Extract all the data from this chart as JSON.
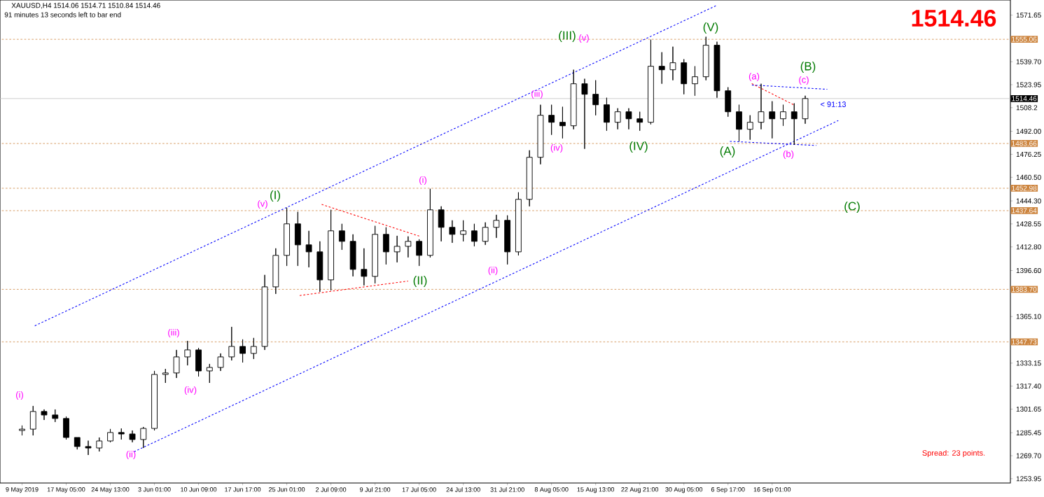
{
  "chart_data": {
    "type": "candlestick",
    "title": "XAUUSD,H4  1514.06 1514.71 1510.84 1514.46",
    "subtitle": "91 minutes 13 seconds left to bar end",
    "color": "#000000",
    "categories": [
      "9 May 2019",
      null,
      null,
      null,
      "17 May 05:00",
      null,
      null,
      null,
      "24 May 13:00",
      null,
      null,
      null,
      "3 Jun 01:00",
      null,
      null,
      null,
      "10 Jun 09:00",
      null,
      null,
      null,
      "17 Jun 17:00",
      null,
      null,
      null,
      "25 Jun 01:00",
      null,
      null,
      null,
      "2 Jul 09:00",
      null,
      null,
      null,
      "9 Jul 21:00",
      null,
      null,
      null,
      "17 Jul 05:00",
      null,
      null,
      null,
      "24 Jul 13:00",
      null,
      null,
      null,
      "31 Jul 21:00",
      null,
      null,
      null,
      "8 Aug 05:00",
      null,
      null,
      null,
      "15 Aug 13:00",
      null,
      null,
      null,
      "22 Aug 21:00",
      null,
      null,
      null,
      "30 Aug 05:00",
      null,
      null,
      null,
      "6 Sep 17:00",
      null,
      null,
      null,
      "16 Sep 01:00",
      null,
      null,
      null,
      null,
      null,
      null,
      null,
      null,
      null,
      null,
      null,
      null,
      null,
      null,
      null,
      null,
      null,
      null,
      null,
      null,
      null
    ],
    "ohlc": [
      [
        1287.0,
        1290.4,
        1283.6,
        1287.9
      ],
      [
        1287.9,
        1303.8,
        1283.6,
        1300.0
      ],
      [
        1300.0,
        1301.4,
        1294.2,
        1297.6
      ],
      [
        1297.6,
        1301.4,
        1292.8,
        1295.2
      ],
      [
        1295.2,
        1296.6,
        1280.8,
        1282.2
      ],
      [
        1282.2,
        1282.2,
        1274.0,
        1276.0
      ],
      [
        1276.0,
        1280.0,
        1270.2,
        1275.0
      ],
      [
        1275.0,
        1282.2,
        1272.6,
        1279.8
      ],
      [
        1279.8,
        1288.0,
        1278.9,
        1285.6
      ],
      [
        1285.6,
        1288.4,
        1280.8,
        1284.6
      ],
      [
        1284.6,
        1287.0,
        1278.9,
        1280.8
      ],
      [
        1280.8,
        1289.4,
        1275.0,
        1288.4
      ],
      [
        1288.4,
        1327.8,
        1287.0,
        1325.4
      ],
      [
        1325.4,
        1329.2,
        1319.6,
        1326.4
      ],
      [
        1326.4,
        1342.2,
        1323.0,
        1337.4
      ],
      [
        1337.4,
        1348.4,
        1331.6,
        1342.2
      ],
      [
        1342.2,
        1343.6,
        1324.0,
        1327.8
      ],
      [
        1327.8,
        1332.6,
        1319.6,
        1330.2
      ],
      [
        1330.2,
        1339.8,
        1327.8,
        1337.4
      ],
      [
        1337.4,
        1358.0,
        1335.0,
        1344.6
      ],
      [
        1344.6,
        1349.4,
        1333.6,
        1339.8
      ],
      [
        1339.8,
        1350.4,
        1336.0,
        1344.6
      ],
      [
        1344.6,
        1393.6,
        1342.2,
        1385.4
      ],
      [
        1385.4,
        1411.8,
        1380.6,
        1407.0
      ],
      [
        1407.0,
        1439.6,
        1399.8,
        1428.6
      ],
      [
        1428.6,
        1436.8,
        1399.8,
        1414.2
      ],
      [
        1414.2,
        1423.8,
        1398.8,
        1409.4
      ],
      [
        1409.4,
        1416.6,
        1382.0,
        1390.2
      ],
      [
        1390.2,
        1438.2,
        1383.0,
        1423.8
      ],
      [
        1423.8,
        1428.6,
        1410.8,
        1416.6
      ],
      [
        1416.6,
        1421.4,
        1392.6,
        1397.4
      ],
      [
        1397.4,
        1411.8,
        1386.4,
        1392.6
      ],
      [
        1392.6,
        1427.2,
        1387.8,
        1421.4
      ],
      [
        1421.4,
        1426.2,
        1400.8,
        1409.4
      ],
      [
        1409.4,
        1420.4,
        1402.2,
        1413.2
      ],
      [
        1413.2,
        1420.0,
        1405.6,
        1416.6
      ],
      [
        1416.6,
        1418.0,
        1399.8,
        1407.0
      ],
      [
        1407.0,
        1452.6,
        1405.6,
        1438.2
      ],
      [
        1438.2,
        1440.6,
        1416.6,
        1426.2
      ],
      [
        1426.2,
        1431.0,
        1415.6,
        1421.4
      ],
      [
        1421.4,
        1431.0,
        1416.6,
        1423.8
      ],
      [
        1423.8,
        1428.6,
        1413.2,
        1416.6
      ],
      [
        1416.6,
        1429.6,
        1414.2,
        1426.2
      ],
      [
        1426.2,
        1434.8,
        1419.0,
        1431.0
      ],
      [
        1431.0,
        1434.4,
        1400.8,
        1409.4
      ],
      [
        1409.4,
        1450.2,
        1407.0,
        1445.4
      ],
      [
        1445.4,
        1479.0,
        1440.6,
        1474.2
      ],
      [
        1474.2,
        1510.2,
        1469.4,
        1503.0
      ],
      [
        1503.0,
        1510.2,
        1489.6,
        1498.2
      ],
      [
        1498.2,
        1508.8,
        1487.2,
        1495.8
      ],
      [
        1495.8,
        1534.2,
        1493.4,
        1524.6
      ],
      [
        1524.6,
        1528.0,
        1480.0,
        1517.4
      ],
      [
        1517.4,
        1527.0,
        1503.0,
        1510.2
      ],
      [
        1510.2,
        1515.0,
        1492.4,
        1498.2
      ],
      [
        1498.2,
        1507.8,
        1493.4,
        1505.4
      ],
      [
        1505.4,
        1507.8,
        1493.4,
        1500.6
      ],
      [
        1500.6,
        1505.4,
        1492.4,
        1498.2
      ],
      [
        1498.2,
        1554.8,
        1496.8,
        1536.6
      ],
      [
        1536.6,
        1546.2,
        1524.6,
        1534.2
      ],
      [
        1534.2,
        1550.0,
        1527.0,
        1539.0
      ],
      [
        1539.0,
        1541.4,
        1517.4,
        1524.6
      ],
      [
        1524.6,
        1536.6,
        1516.4,
        1529.4
      ],
      [
        1529.4,
        1556.8,
        1527.0,
        1551.0
      ],
      [
        1551.0,
        1553.4,
        1515.0,
        1519.8
      ],
      [
        1519.8,
        1522.2,
        1502.0,
        1505.4
      ],
      [
        1505.4,
        1510.2,
        1485.2,
        1493.4
      ],
      [
        1493.4,
        1503.0,
        1486.2,
        1498.2
      ],
      [
        1498.2,
        1524.6,
        1493.4,
        1505.4
      ],
      [
        1505.4,
        1512.6,
        1487.2,
        1500.6
      ],
      [
        1500.6,
        1510.2,
        1495.8,
        1505.4
      ],
      [
        1505.4,
        1511.2,
        1482.8,
        1500.6
      ],
      [
        1500.6,
        1516.4,
        1497.2,
        1514.46
      ],
      null,
      null,
      null,
      null,
      null,
      null,
      null,
      null,
      null,
      null,
      null,
      null,
      null,
      null,
      null,
      null,
      null,
      null
    ],
    "series": [
      {
        "type": "line",
        "color": "#0000ff",
        "line_style": "dashed",
        "values": [
          null,
          1358.2,
          null,
          null,
          null,
          null,
          null,
          null,
          null,
          null,
          null,
          null,
          null,
          null,
          null,
          null,
          null,
          null,
          null,
          null,
          null,
          null,
          null,
          null,
          null,
          null,
          null,
          null,
          null,
          null,
          null,
          null,
          null,
          null,
          null,
          null,
          null,
          null,
          null,
          null,
          null,
          null,
          null,
          null,
          null,
          null,
          null,
          null,
          null,
          null,
          null,
          null,
          null,
          null,
          null,
          null,
          null,
          null,
          null,
          null,
          null,
          null,
          null,
          1578.4,
          null,
          null,
          null,
          null,
          null,
          null,
          null,
          null,
          null,
          null,
          null,
          null,
          null,
          null,
          null,
          null,
          null,
          null,
          null,
          null,
          null,
          null,
          null,
          null,
          null,
          null
        ]
      },
      {
        "type": "line",
        "color": "#0000ff",
        "line_style": "dashed",
        "values": [
          null,
          null,
          null,
          null,
          null,
          null,
          null,
          null,
          null,
          null,
          1271.9,
          null,
          null,
          null,
          null,
          null,
          null,
          null,
          null,
          null,
          null,
          null,
          null,
          null,
          null,
          null,
          null,
          null,
          null,
          null,
          null,
          null,
          null,
          null,
          null,
          null,
          null,
          null,
          null,
          null,
          null,
          null,
          null,
          null,
          null,
          null,
          null,
          null,
          null,
          null,
          null,
          null,
          null,
          null,
          null,
          null,
          null,
          null,
          null,
          null,
          null,
          null,
          null,
          null,
          null,
          null,
          null,
          null,
          null,
          null,
          null,
          null,
          null,
          null,
          1499.4,
          null,
          null,
          null,
          null,
          null,
          null,
          null,
          null,
          null,
          null,
          null,
          null,
          null,
          null,
          null
        ]
      },
      {
        "type": "line",
        "color": "#ff0000",
        "line_style": "dashed",
        "values": [
          null,
          null,
          null,
          null,
          null,
          null,
          null,
          null,
          null,
          null,
          null,
          null,
          null,
          null,
          null,
          null,
          null,
          null,
          null,
          null,
          null,
          null,
          null,
          null,
          null,
          null,
          null,
          1442.3,
          null,
          null,
          null,
          null,
          null,
          null,
          null,
          null,
          1420.2,
          null,
          null,
          null,
          null,
          null,
          null,
          null,
          null,
          null,
          null,
          null,
          null,
          null,
          null,
          null,
          null,
          null,
          null,
          null,
          null,
          null,
          null,
          null,
          null,
          null,
          null,
          null,
          null,
          null,
          null,
          null,
          null,
          null,
          null,
          null,
          null,
          null,
          null,
          null,
          null,
          null,
          null,
          null,
          null,
          null,
          null,
          null,
          null,
          null,
          null,
          null,
          null,
          null
        ]
      },
      {
        "type": "line",
        "color": "#ff0000",
        "line_style": "dashed",
        "values": [
          null,
          null,
          null,
          null,
          null,
          null,
          null,
          null,
          null,
          null,
          null,
          null,
          null,
          null,
          null,
          null,
          null,
          null,
          null,
          null,
          null,
          null,
          null,
          null,
          null,
          1379.3,
          null,
          null,
          null,
          null,
          null,
          null,
          null,
          null,
          null,
          1389.4,
          null,
          null,
          null,
          null,
          null,
          null,
          null,
          null,
          null,
          null,
          null,
          null,
          null,
          null,
          null,
          null,
          null,
          null,
          null,
          null,
          null,
          null,
          null,
          null,
          null,
          null,
          null,
          null,
          null,
          null,
          null,
          null,
          null,
          null,
          null,
          null,
          null,
          null,
          null,
          null,
          null,
          null,
          null,
          null,
          null,
          null,
          null,
          null,
          null,
          null,
          null,
          null,
          null,
          null
        ]
      },
      {
        "type": "line",
        "color": "#ff0000",
        "line_style": "dashed",
        "values": [
          null,
          null,
          null,
          null,
          null,
          null,
          null,
          null,
          null,
          null,
          null,
          null,
          null,
          null,
          null,
          null,
          null,
          null,
          null,
          null,
          null,
          null,
          null,
          null,
          null,
          null,
          null,
          null,
          null,
          null,
          null,
          null,
          null,
          null,
          null,
          null,
          null,
          null,
          null,
          null,
          null,
          null,
          null,
          null,
          null,
          null,
          null,
          null,
          null,
          null,
          null,
          null,
          null,
          null,
          null,
          null,
          null,
          null,
          null,
          null,
          null,
          null,
          null,
          null,
          null,
          null,
          1525.3,
          null,
          null,
          null,
          1510.0,
          null,
          null,
          null,
          null,
          null,
          null,
          null,
          null,
          null,
          null,
          null,
          null,
          null,
          null,
          null,
          null,
          null,
          null,
          null
        ]
      },
      {
        "type": "line",
        "color": "#0000ff",
        "line_style": "dashed",
        "values": [
          null,
          null,
          null,
          null,
          null,
          null,
          null,
          null,
          null,
          null,
          null,
          null,
          null,
          null,
          null,
          null,
          null,
          null,
          null,
          null,
          null,
          null,
          null,
          null,
          null,
          null,
          null,
          null,
          null,
          null,
          null,
          null,
          null,
          null,
          null,
          null,
          null,
          null,
          null,
          null,
          null,
          null,
          null,
          null,
          null,
          null,
          null,
          null,
          null,
          null,
          null,
          null,
          null,
          null,
          null,
          null,
          null,
          null,
          null,
          null,
          null,
          null,
          null,
          null,
          null,
          null,
          1523.8,
          null,
          null,
          null,
          null,
          null,
          null,
          1520.8,
          null,
          null,
          null,
          null,
          null,
          null,
          null,
          null,
          null,
          null,
          null,
          null,
          null,
          null,
          null,
          null
        ]
      },
      {
        "type": "line",
        "color": "#0000ff",
        "line_style": "dashed",
        "values": [
          null,
          null,
          null,
          null,
          null,
          null,
          null,
          null,
          null,
          null,
          null,
          null,
          null,
          null,
          null,
          null,
          null,
          null,
          null,
          null,
          null,
          null,
          null,
          null,
          null,
          null,
          null,
          null,
          null,
          null,
          null,
          null,
          null,
          null,
          null,
          null,
          null,
          null,
          null,
          null,
          null,
          null,
          null,
          null,
          null,
          null,
          null,
          null,
          null,
          null,
          null,
          null,
          null,
          null,
          null,
          null,
          null,
          null,
          null,
          null,
          null,
          null,
          null,
          null,
          1485.2,
          null,
          null,
          null,
          null,
          null,
          null,
          null,
          1482.3,
          null,
          null,
          null,
          null,
          null,
          null,
          null,
          null,
          null,
          null,
          null,
          null,
          null,
          null,
          null,
          null,
          null
        ]
      }
    ],
    "ylim": [
      1251,
      1582
    ],
    "yticks": [
      1571.65,
      {
        "value": 1539.7,
        "label": "1539.70"
      },
      1523.95,
      1508.2,
      {
        "value": 1492.0,
        "label": "1492.00"
      },
      1476.25,
      {
        "value": 1460.5,
        "label": "1460.50"
      },
      {
        "value": 1444.3,
        "label": "1444.30"
      },
      1428.55,
      {
        "value": 1412.8,
        "label": "1412.80"
      },
      {
        "value": 1396.6,
        "label": "1396.60"
      },
      {
        "value": 1365.1,
        "label": "1365.10"
      },
      1333.15,
      {
        "value": 1317.4,
        "label": "1317.40"
      },
      1301.65,
      1285.45,
      {
        "value": 1269.7,
        "label": "1269.70"
      },
      1253.95
    ],
    "ref_lines": [
      {
        "axis": "y",
        "value": 1555.06,
        "label": "1555.06",
        "color": "#cd853f",
        "line_style": "dashed"
      },
      {
        "axis": "y",
        "value": 1514.46,
        "label": "1514.46",
        "color": "#c0c0c0",
        "line_style": "solid"
      },
      {
        "axis": "y",
        "value": 1483.66,
        "label": "1483.66",
        "color": "#cd853f",
        "line_style": "dashed"
      },
      {
        "axis": "y",
        "value": 1452.98,
        "label": "1452.98",
        "color": "#cd853f",
        "line_style": "dashed"
      },
      {
        "axis": "y",
        "value": 1437.64,
        "label": "1437.64",
        "color": "#cd853f",
        "line_style": "dashed"
      },
      {
        "axis": "y",
        "value": 1383.7,
        "label": "1383.70",
        "color": "#cd853f",
        "line_style": "dashed"
      },
      {
        "axis": "y",
        "value": 1347.73,
        "label": "1347.73",
        "color": "#cd853f",
        "line_style": "dashed"
      }
    ],
    "annotations": [
      "1514.46",
      "< 91:13",
      "Spread: 23 points.",
      "(i)",
      "(ii)",
      "(iii)",
      "(iv)",
      "(v)",
      "(I)",
      "(II)",
      "(i)",
      "(ii)",
      "(iii)",
      "(iv)",
      "(III)",
      "(v)",
      "(IV)",
      "(V)",
      "(A)",
      "(a)",
      "(b)",
      "(B)",
      "(c)",
      "(C)"
    ]
  }
}
